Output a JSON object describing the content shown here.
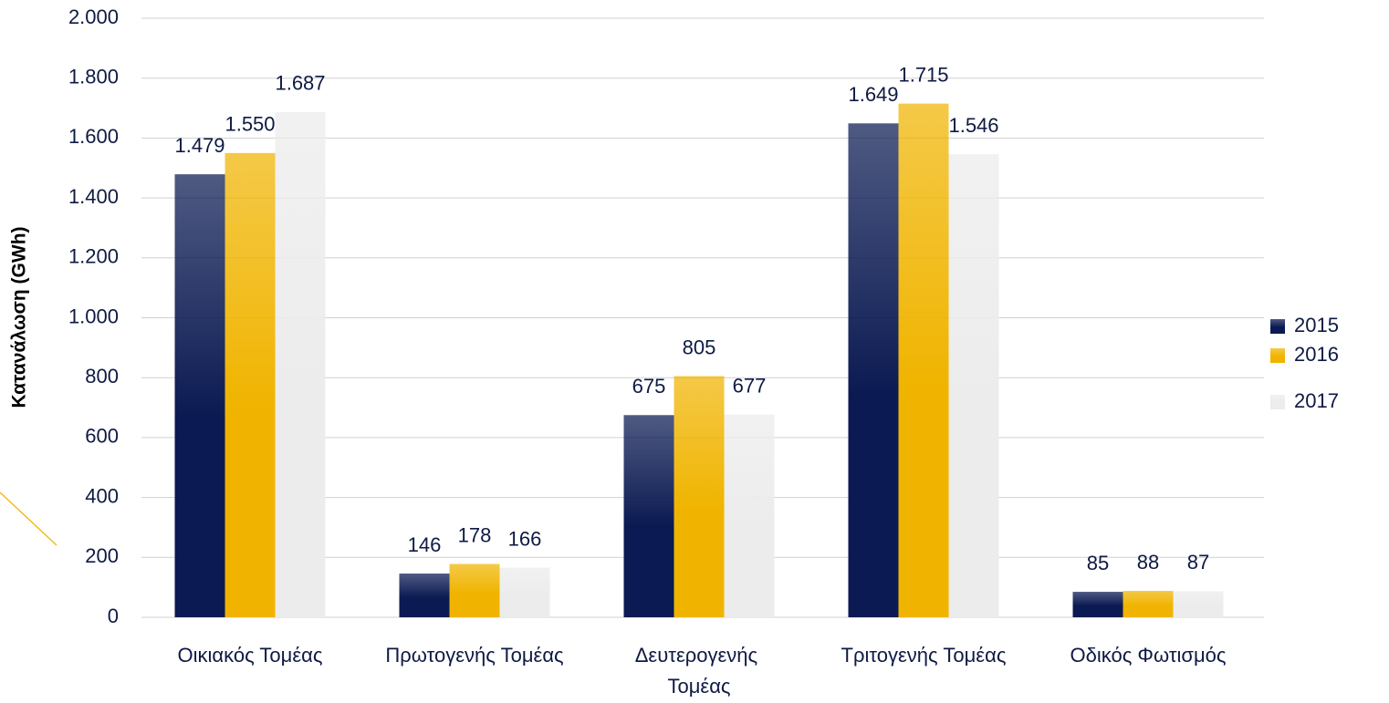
{
  "chart_data": {
    "type": "bar",
    "y_label": "Κατανάλωση (GWh)",
    "categories": [
      "Οικιακός Τομέας",
      "Πρωτογενής Τομέας",
      "Δευτερογενής Τομέας",
      "Τριτογενής Τομέας",
      "Οδικός Φωτισμός"
    ],
    "series": [
      {
        "name": "2015",
        "color": "#0b1a52",
        "values": [
          1479,
          146,
          675,
          1649,
          85
        ],
        "value_labels": [
          "1.479",
          "146",
          "675",
          "1.649",
          "85"
        ]
      },
      {
        "name": "2016",
        "color": "#f0b400",
        "values": [
          1550,
          178,
          805,
          1715,
          88
        ],
        "value_labels": [
          "1.550",
          "178",
          "805",
          "1.715",
          "88"
        ]
      },
      {
        "name": "2017",
        "color": "#ececec",
        "values": [
          1687,
          166,
          677,
          1546,
          87
        ],
        "value_labels": [
          "1.687",
          "166",
          "677",
          "1.546",
          "87"
        ]
      }
    ],
    "ylim": [
      0,
      2000
    ],
    "yticks": [
      0,
      200,
      400,
      600,
      800,
      {
        "value": 1000,
        "label": "1.000"
      },
      {
        "value": 1200,
        "label": "1.200"
      },
      {
        "value": 1400,
        "label": "1.400"
      },
      {
        "value": 1600,
        "label": "1.600"
      },
      {
        "value": 1800,
        "label": "1.800"
      },
      {
        "value": 2000,
        "label": "2.000"
      }
    ],
    "grid": true,
    "legend": "right"
  }
}
